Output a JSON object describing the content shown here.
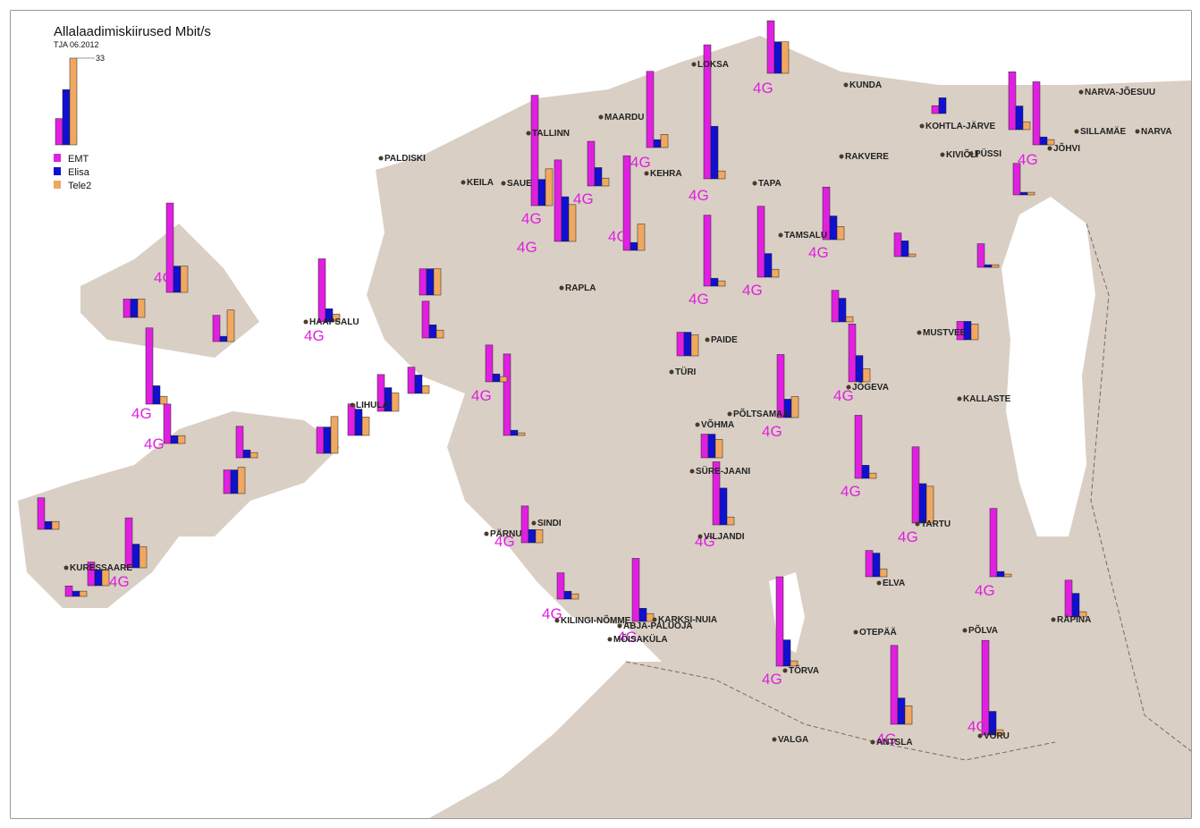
{
  "title": "Allalaadimiskiirused Mbit/s",
  "subtitle": "TJA 06.2012",
  "legend": {
    "scale_label": "33",
    "values": [
      10,
      21,
      33
    ],
    "series": [
      {
        "name": "EMT",
        "color": "#e020e0"
      },
      {
        "name": "Elisa",
        "color": "#1010d0"
      },
      {
        "name": "Tele2",
        "color": "#f0a860"
      }
    ]
  },
  "sites": [
    {
      "values": [
        42,
        10,
        14
      ],
      "label": "4G"
    },
    {
      "values": [
        31,
        17,
        14
      ],
      "label": "4G"
    },
    {
      "values": [
        17,
        7,
        3
      ],
      "label": "4G"
    },
    {
      "values": [
        36,
        3,
        10
      ],
      "label": "4G"
    },
    {
      "values": [
        29,
        3,
        5
      ],
      "label": "4G"
    },
    {
      "values": [
        51,
        20,
        3
      ],
      "label": "4G"
    },
    {
      "values": [
        27,
        3,
        2
      ],
      "label": "4G"
    },
    {
      "values": [
        20,
        12,
        12
      ],
      "label": "4G"
    },
    {
      "values": [
        20,
        9,
        5
      ],
      "label": "4G"
    },
    {
      "values": [
        27,
        9,
        3
      ],
      "label": "4G"
    },
    {
      "values": [
        22,
        9,
        3
      ]
    },
    {
      "values": [
        24,
        3,
        2
      ],
      "label": "4G"
    },
    {
      "values": [
        12,
        1,
        1
      ]
    },
    {
      "values": [
        3,
        6,
        0
      ]
    },
    {
      "values": [
        9,
        6,
        1
      ]
    },
    {
      "values": [
        9,
        1,
        1
      ]
    },
    {
      "values": [
        7,
        7,
        6
      ]
    },
    {
      "values": [
        12,
        9,
        2
      ]
    },
    {
      "values": [
        22,
        10,
        5
      ],
      "label": "4G"
    },
    {
      "values": [
        24,
        7,
        8
      ],
      "label": "4G"
    },
    {
      "values": [
        24,
        5,
        2
      ],
      "label": "4G"
    },
    {
      "values": [
        29,
        15,
        14
      ],
      "label": "4G"
    },
    {
      "values": [
        26,
        2,
        1
      ],
      "label": "4G"
    },
    {
      "values": [
        14,
        9,
        2
      ]
    },
    {
      "values": [
        36,
        9,
        2
      ],
      "label": "4G"
    },
    {
      "values": [
        30,
        10,
        7
      ],
      "label": "4G"
    },
    {
      "values": [
        10,
        9,
        3
      ]
    },
    {
      "values": [
        34,
        10,
        2
      ],
      "label": "4G"
    },
    {
      "values": [
        24,
        5,
        3
      ],
      "label": "4G"
    },
    {
      "values": [
        10,
        3,
        2
      ],
      "label": "4G"
    },
    {
      "values": [
        24,
        14,
        3
      ],
      "label": "4G"
    },
    {
      "values": [
        9,
        9,
        7
      ]
    },
    {
      "values": [
        9,
        9,
        8
      ]
    },
    {
      "values": [
        31,
        2,
        1
      ],
      "label": "4G"
    },
    {
      "values": [
        14,
        3,
        2
      ]
    },
    {
      "values": [
        14,
        5,
        5
      ],
      "label": "4G"
    },
    {
      "values": [
        12,
        10,
        7
      ]
    },
    {
      "values": [
        14,
        9,
        7
      ]
    },
    {
      "values": [
        10,
        7,
        3
      ]
    },
    {
      "values": [
        24,
        5,
        3
      ],
      "label": "4G"
    },
    {
      "values": [
        10,
        10,
        10
      ]
    },
    {
      "values": [
        14,
        5,
        3
      ]
    },
    {
      "values": [
        10,
        10,
        14
      ]
    },
    {
      "values": [
        12,
        3,
        2
      ]
    },
    {
      "values": [
        9,
        9,
        10
      ]
    },
    {
      "values": [
        34,
        10,
        10
      ],
      "label": "4G"
    },
    {
      "values": [
        7,
        7,
        7
      ]
    },
    {
      "values": [
        29,
        7,
        3
      ],
      "label": "4G"
    },
    {
      "values": [
        15,
        3,
        3
      ],
      "label": "4G"
    },
    {
      "values": [
        12,
        3,
        3
      ]
    },
    {
      "values": [
        19,
        9,
        8
      ],
      "label": "4G"
    },
    {
      "values": [
        4,
        2,
        2
      ]
    },
    {
      "values": [
        9,
        6,
        6
      ]
    },
    {
      "values": [
        10,
        2,
        12
      ]
    }
  ],
  "towns": [
    "TALLINN",
    "PALDISKI",
    "KEILA",
    "SAUE",
    "MAARDU",
    "KEHRA",
    "LOKSA",
    "KUNDA",
    "RAKVERE",
    "TAPA",
    "TAMSALU",
    "KOHTLA-JÄRVE",
    "NARVA-JÕESUU",
    "SILLAMÄE",
    "NARVA",
    "JÕHVI",
    "KIVIÕLI",
    "PÜSSI",
    "RAPLA",
    "HAAPSALU",
    "LIHULA",
    "PAIDE",
    "TÜRI",
    "JÕGEVA",
    "MUSTVEE",
    "KALLASTE",
    "PÕLTSAMAA",
    "VÕHMA",
    "SÜRE-JAANI",
    "VILJANDI",
    "PÄRNU",
    "SINDI",
    "KILINGI-NÕMME",
    "KARKSI-NUIA",
    "ABJA-PALUOJA",
    "MÕISAKÜLA",
    "TÕRVA",
    "VALGA",
    "OTEPÄÄ",
    "ELVA",
    "TARTU",
    "PÕLVA",
    "RÄPINA",
    "VÕRU",
    "ANTSLA",
    "KURESSAARE"
  ]
}
